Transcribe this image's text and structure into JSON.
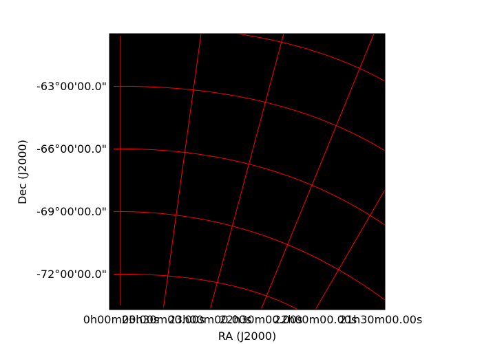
{
  "chart_data": {
    "type": "grid",
    "xlabel": "RA (J2000)",
    "ylabel": "Dec (J2000)",
    "grid": true,
    "colors": {
      "background": "#000000",
      "grid": "#ff0000",
      "frame": "#000000",
      "text": "#000000"
    },
    "x_tick_labels": [
      "0h00m00.00s",
      "23h30m00.00s",
      "23h00m00.00s",
      "22h30m00.00s",
      "22h00m00.00s",
      "21h30m00.00s"
    ],
    "y_tick_labels": [
      "-63°00'00.0\"",
      "-66°00'00.0\"",
      "-69°00'00.0\"",
      "-72°00'00.0\""
    ]
  }
}
